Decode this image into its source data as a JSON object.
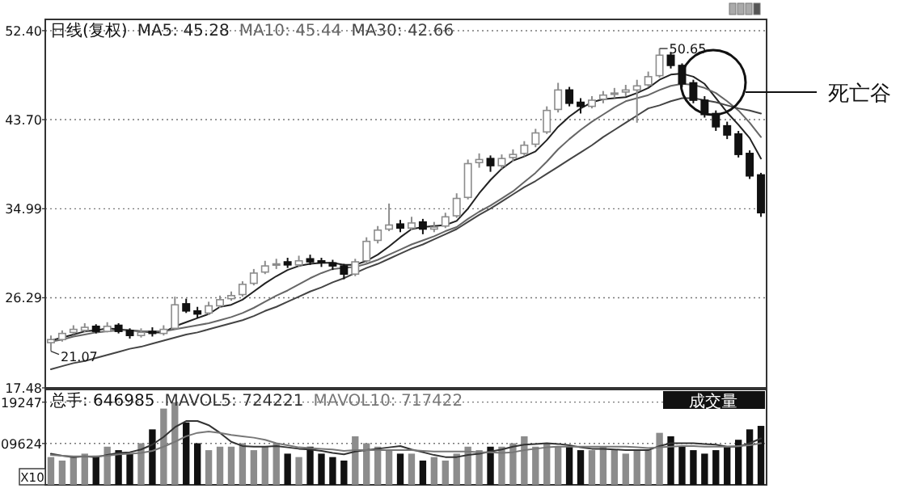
{
  "chart_data": [
    {
      "type": "candlestick",
      "title": "日线(复权)",
      "legend": "top left",
      "grid": "y",
      "tick_labels": "y",
      "categories": [
        null,
        null,
        null,
        null,
        null,
        null,
        null,
        null,
        null,
        null,
        null,
        null,
        null,
        null,
        null,
        null,
        null,
        null,
        null,
        null,
        null,
        null,
        null,
        null,
        null,
        null,
        null,
        null,
        null,
        null,
        null,
        null,
        null,
        null,
        null,
        null,
        null,
        null,
        null,
        null,
        null,
        null,
        null,
        null,
        null,
        null,
        null,
        null,
        null,
        null,
        null,
        null,
        null,
        null,
        null,
        null,
        null,
        null,
        null,
        null,
        null,
        null,
        null,
        null
      ],
      "ylim": [
        17.48,
        53.5
      ],
      "yticks": [
        {
          "value": 17.48,
          "label": "17.48"
        },
        {
          "value": 26.29,
          "label": "26.29"
        },
        {
          "value": 34.99,
          "label": "34.99"
        },
        {
          "value": 43.7,
          "label": "43.70"
        },
        {
          "value": 52.4,
          "label": "52.40"
        }
      ],
      "ohlc": [
        [
          21.9,
          22.6,
          21.07,
          22.2
        ],
        [
          22.2,
          23.1,
          22.0,
          22.8
        ],
        [
          22.9,
          23.6,
          22.7,
          23.2
        ],
        [
          23.1,
          23.8,
          22.9,
          23.4
        ],
        [
          23.5,
          23.7,
          22.8,
          23.0
        ],
        [
          23.0,
          23.9,
          22.9,
          23.5
        ],
        [
          23.6,
          23.8,
          22.8,
          23.0
        ],
        [
          23.1,
          23.3,
          22.3,
          22.6
        ],
        [
          22.6,
          23.3,
          22.4,
          22.9
        ],
        [
          23.0,
          23.4,
          22.5,
          22.8
        ],
        [
          22.8,
          23.6,
          22.6,
          23.2
        ],
        [
          23.3,
          26.4,
          23.2,
          25.6
        ],
        [
          25.7,
          26.2,
          24.8,
          25.0
        ],
        [
          25.0,
          25.4,
          24.3,
          24.7
        ],
        [
          24.8,
          25.9,
          24.6,
          25.5
        ],
        [
          25.5,
          26.5,
          25.3,
          26.1
        ],
        [
          26.2,
          26.9,
          26.0,
          26.5
        ],
        [
          26.6,
          27.9,
          26.4,
          27.6
        ],
        [
          27.7,
          29.1,
          27.5,
          28.7
        ],
        [
          28.8,
          29.9,
          28.6,
          29.4
        ],
        [
          29.5,
          30.1,
          29.1,
          29.6
        ],
        [
          29.8,
          30.2,
          29.2,
          29.5
        ],
        [
          29.5,
          30.4,
          29.3,
          29.9
        ],
        [
          30.1,
          30.5,
          29.5,
          29.8
        ],
        [
          29.9,
          30.2,
          29.3,
          29.7
        ],
        [
          29.7,
          30.0,
          29.0,
          29.4
        ],
        [
          29.4,
          29.6,
          28.1,
          28.6
        ],
        [
          28.6,
          30.1,
          28.4,
          29.8
        ],
        [
          29.9,
          32.2,
          29.7,
          31.8
        ],
        [
          31.9,
          33.3,
          31.6,
          32.9
        ],
        [
          33.0,
          35.5,
          32.8,
          33.4
        ],
        [
          33.5,
          33.9,
          32.7,
          33.1
        ],
        [
          33.1,
          34.2,
          32.9,
          33.6
        ],
        [
          33.7,
          34.0,
          32.5,
          33.0
        ],
        [
          33.0,
          33.7,
          32.7,
          33.2
        ],
        [
          33.3,
          34.6,
          33.1,
          34.2
        ],
        [
          34.3,
          36.5,
          34.1,
          36.0
        ],
        [
          36.1,
          39.8,
          35.9,
          39.4
        ],
        [
          39.5,
          40.4,
          39.0,
          39.8
        ],
        [
          39.9,
          40.2,
          38.6,
          39.2
        ],
        [
          39.2,
          40.3,
          38.9,
          39.9
        ],
        [
          40.0,
          40.8,
          39.6,
          40.3
        ],
        [
          40.4,
          41.6,
          40.1,
          41.2
        ],
        [
          41.3,
          42.8,
          41.0,
          42.4
        ],
        [
          42.5,
          45.0,
          42.3,
          44.6
        ],
        [
          44.7,
          47.3,
          44.4,
          46.6
        ],
        [
          46.6,
          46.9,
          45.0,
          45.3
        ],
        [
          45.4,
          45.8,
          44.3,
          45.0
        ],
        [
          45.0,
          46.0,
          44.8,
          45.6
        ],
        [
          45.7,
          46.5,
          45.3,
          46.1
        ],
        [
          46.2,
          46.8,
          45.8,
          46.3
        ],
        [
          46.4,
          47.1,
          46.0,
          46.6
        ],
        [
          46.6,
          47.6,
          43.4,
          47.0
        ],
        [
          47.1,
          48.4,
          46.9,
          47.9
        ],
        [
          48.0,
          50.65,
          47.8,
          50.0
        ],
        [
          50.0,
          50.3,
          48.7,
          49.0
        ],
        [
          49.0,
          49.2,
          46.9,
          47.2
        ],
        [
          47.3,
          47.6,
          45.3,
          45.6
        ],
        [
          45.6,
          46.0,
          43.9,
          44.2
        ],
        [
          44.3,
          44.6,
          42.6,
          43.0
        ],
        [
          43.1,
          43.5,
          41.8,
          42.2
        ],
        [
          42.3,
          42.6,
          40.0,
          40.3
        ],
        [
          40.4,
          40.7,
          37.9,
          38.2
        ],
        [
          38.3,
          38.5,
          34.2,
          34.6
        ]
      ],
      "colors": [
        "#8c8c8c",
        "#8c8c8c",
        "#8c8c8c",
        "#8c8c8c",
        "#111111",
        "#8c8c8c",
        "#111111",
        "#111111",
        "#8c8c8c",
        "#111111",
        "#8c8c8c",
        "#8c8c8c",
        "#111111",
        "#111111",
        "#8c8c8c",
        "#8c8c8c",
        "#8c8c8c",
        "#8c8c8c",
        "#8c8c8c",
        "#8c8c8c",
        "#8c8c8c",
        "#111111",
        "#8c8c8c",
        "#111111",
        "#111111",
        "#111111",
        "#111111",
        "#8c8c8c",
        "#8c8c8c",
        "#8c8c8c",
        "#8c8c8c",
        "#111111",
        "#8c8c8c",
        "#111111",
        "#8c8c8c",
        "#8c8c8c",
        "#8c8c8c",
        "#8c8c8c",
        "#8c8c8c",
        "#111111",
        "#8c8c8c",
        "#8c8c8c",
        "#8c8c8c",
        "#8c8c8c",
        "#8c8c8c",
        "#8c8c8c",
        "#111111",
        "#111111",
        "#8c8c8c",
        "#8c8c8c",
        "#8c8c8c",
        "#8c8c8c",
        "#8c8c8c",
        "#8c8c8c",
        "#8c8c8c",
        "#111111",
        "#111111",
        "#111111",
        "#111111",
        "#111111",
        "#111111",
        "#111111",
        "#111111",
        "#111111"
      ],
      "series": [
        {
          "name": "MA5: 45.28",
          "type": "line",
          "color": "#222222",
          "values": [
            22.1,
            22.4,
            22.7,
            23.0,
            23.1,
            23.3,
            23.2,
            23.1,
            23.0,
            22.9,
            22.9,
            23.5,
            23.9,
            24.3,
            24.7,
            25.4,
            25.6,
            26.1,
            26.9,
            27.7,
            28.4,
            29.0,
            29.4,
            29.6,
            29.7,
            29.7,
            29.5,
            29.5,
            29.9,
            30.5,
            31.3,
            32.2,
            33.0,
            33.2,
            33.3,
            33.4,
            33.8,
            35.0,
            36.5,
            37.8,
            38.9,
            39.7,
            40.1,
            40.6,
            41.7,
            43.0,
            44.0,
            44.8,
            45.4,
            45.7,
            45.8,
            45.9,
            46.3,
            46.8,
            47.6,
            48.1,
            48.2,
            47.9,
            47.2,
            45.8,
            44.4,
            43.2,
            41.9,
            39.9
          ]
        },
        {
          "name": "MA10: 45.44",
          "type": "line",
          "color": "#666666",
          "values": [
            22.0,
            22.2,
            22.5,
            22.7,
            22.9,
            23.0,
            23.1,
            23.1,
            23.0,
            23.0,
            23.0,
            23.2,
            23.4,
            23.6,
            23.8,
            24.1,
            24.4,
            24.8,
            25.3,
            25.9,
            26.5,
            27.0,
            27.6,
            28.2,
            28.7,
            29.1,
            29.2,
            29.3,
            29.6,
            30.0,
            30.5,
            31.0,
            31.5,
            31.9,
            32.3,
            32.8,
            33.2,
            34.0,
            34.7,
            35.3,
            36.0,
            36.7,
            37.6,
            38.5,
            39.6,
            40.8,
            41.8,
            42.7,
            43.5,
            44.2,
            44.9,
            45.5,
            45.8,
            46.1,
            46.6,
            47.0,
            47.2,
            47.1,
            46.8,
            46.3,
            45.5,
            44.6,
            43.4,
            42.0
          ]
        },
        {
          "name": "MA30: 42.66",
          "type": "line",
          "color": "#444444",
          "values": [
            19.3,
            19.6,
            19.9,
            20.1,
            20.4,
            20.7,
            21.0,
            21.3,
            21.5,
            21.8,
            22.1,
            22.4,
            22.7,
            22.9,
            23.2,
            23.5,
            23.8,
            24.1,
            24.5,
            25.0,
            25.4,
            25.9,
            26.4,
            26.9,
            27.3,
            27.8,
            28.2,
            28.7,
            29.2,
            29.6,
            30.1,
            30.6,
            31.1,
            31.5,
            32.0,
            32.5,
            33.0,
            33.7,
            34.4,
            35.0,
            35.7,
            36.4,
            37.1,
            37.7,
            38.4,
            39.1,
            39.8,
            40.5,
            41.2,
            42.0,
            42.7,
            43.4,
            44.1,
            44.8,
            45.1,
            45.5,
            45.8,
            45.8,
            45.6,
            45.4,
            45.1,
            44.8,
            44.6,
            44.3
          ]
        }
      ],
      "annotations": [
        "50.65",
        "21.07",
        "死亡谷"
      ]
    },
    {
      "type": "bar",
      "legend": "top left",
      "grid": "y",
      "tick_labels": "y",
      "categories": [
        null,
        null,
        null,
        null,
        null,
        null,
        null,
        null,
        null,
        null,
        null,
        null,
        null,
        null,
        null,
        null,
        null,
        null,
        null,
        null,
        null,
        null,
        null,
        null,
        null,
        null,
        null,
        null,
        null,
        null,
        null,
        null,
        null,
        null,
        null,
        null,
        null,
        null,
        null,
        null,
        null,
        null,
        null,
        null,
        null,
        null,
        null,
        null,
        null,
        null,
        null,
        null,
        null,
        null,
        null,
        null,
        null,
        null,
        null,
        null,
        null,
        null,
        null,
        null
      ],
      "ylim": [
        0,
        22190
      ],
      "yticks": [
        {
          "value": 9624,
          "label": "09624"
        },
        {
          "value": 19247,
          "label": "19247"
        }
      ],
      "series": [
        {
          "values": [
            6460,
            5650,
            6460,
            7260,
            6780,
            8880,
            8070,
            7260,
            9680,
            12910,
            17750,
            19210,
            14530,
            9680,
            8070,
            8880,
            8880,
            9680,
            8070,
            8880,
            9680,
            7260,
            6460,
            8880,
            7260,
            6460,
            5650,
            11300,
            9680,
            8880,
            8070,
            7260,
            7260,
            5650,
            6460,
            5650,
            7260,
            8880,
            8070,
            8880,
            8880,
            9680,
            11300,
            8880,
            9680,
            8880,
            8880,
            8070,
            8070,
            8880,
            8070,
            7260,
            8070,
            8070,
            12100,
            11300,
            8880,
            8070,
            7260,
            8070,
            8880,
            10490,
            12910,
            13720
          ],
          "colors": [
            "#8c8c8c",
            "#8c8c8c",
            "#8c8c8c",
            "#8c8c8c",
            "#111111",
            "#8c8c8c",
            "#111111",
            "#111111",
            "#8c8c8c",
            "#111111",
            "#8c8c8c",
            "#8c8c8c",
            "#111111",
            "#111111",
            "#8c8c8c",
            "#8c8c8c",
            "#8c8c8c",
            "#8c8c8c",
            "#8c8c8c",
            "#8c8c8c",
            "#8c8c8c",
            "#111111",
            "#8c8c8c",
            "#111111",
            "#111111",
            "#111111",
            "#111111",
            "#8c8c8c",
            "#8c8c8c",
            "#8c8c8c",
            "#8c8c8c",
            "#111111",
            "#8c8c8c",
            "#111111",
            "#8c8c8c",
            "#8c8c8c",
            "#8c8c8c",
            "#8c8c8c",
            "#8c8c8c",
            "#111111",
            "#8c8c8c",
            "#8c8c8c",
            "#8c8c8c",
            "#8c8c8c",
            "#8c8c8c",
            "#8c8c8c",
            "#111111",
            "#111111",
            "#8c8c8c",
            "#8c8c8c",
            "#8c8c8c",
            "#8c8c8c",
            "#8c8c8c",
            "#8c8c8c",
            "#8c8c8c",
            "#111111",
            "#111111",
            "#111111",
            "#111111",
            "#111111",
            "#111111",
            "#111111",
            "#111111",
            "#111111"
          ]
        },
        {
          "name": "MAVOL5: 724221",
          "type": "line",
          "color": "#333333",
          "values": [
            7260,
            6780,
            6460,
            6620,
            6460,
            6940,
            7420,
            7590,
            8230,
            9360,
            11140,
            13400,
            14850,
            14850,
            13880,
            12100,
            10010,
            9040,
            8880,
            8880,
            9040,
            8720,
            8390,
            8230,
            7910,
            7420,
            7100,
            7750,
            8070,
            8390,
            8720,
            9040,
            8230,
            7590,
            6940,
            6460,
            6460,
            6940,
            7260,
            7750,
            8230,
            8880,
            9360,
            9520,
            9680,
            9520,
            9200,
            8720,
            8390,
            8390,
            8230,
            8070,
            8070,
            8070,
            9040,
            9680,
            9680,
            9680,
            9520,
            9360,
            8880,
            8880,
            9680,
            10810
          ]
        },
        {
          "name": "MAVOL10: 717422",
          "type": "line",
          "color": "#777777",
          "values": [
            6940,
            6780,
            6620,
            6620,
            6620,
            6780,
            7100,
            7260,
            7420,
            7910,
            8880,
            10010,
            11300,
            12100,
            12430,
            12100,
            11620,
            11300,
            10980,
            10490,
            9680,
            9200,
            8720,
            8550,
            8390,
            8230,
            7910,
            8070,
            8070,
            8070,
            8070,
            8070,
            8070,
            7910,
            7750,
            7750,
            7750,
            7750,
            7590,
            7590,
            7420,
            7590,
            8070,
            8390,
            8720,
            8880,
            8880,
            8880,
            8880,
            8880,
            8880,
            8880,
            8720,
            8550,
            8720,
            8880,
            9040,
            9040,
            8880,
            8880,
            8880,
            9040,
            9200,
            9680
          ]
        }
      ],
      "annotations": [
        "总手: 646985",
        "成交量",
        "X10"
      ]
    }
  ]
}
